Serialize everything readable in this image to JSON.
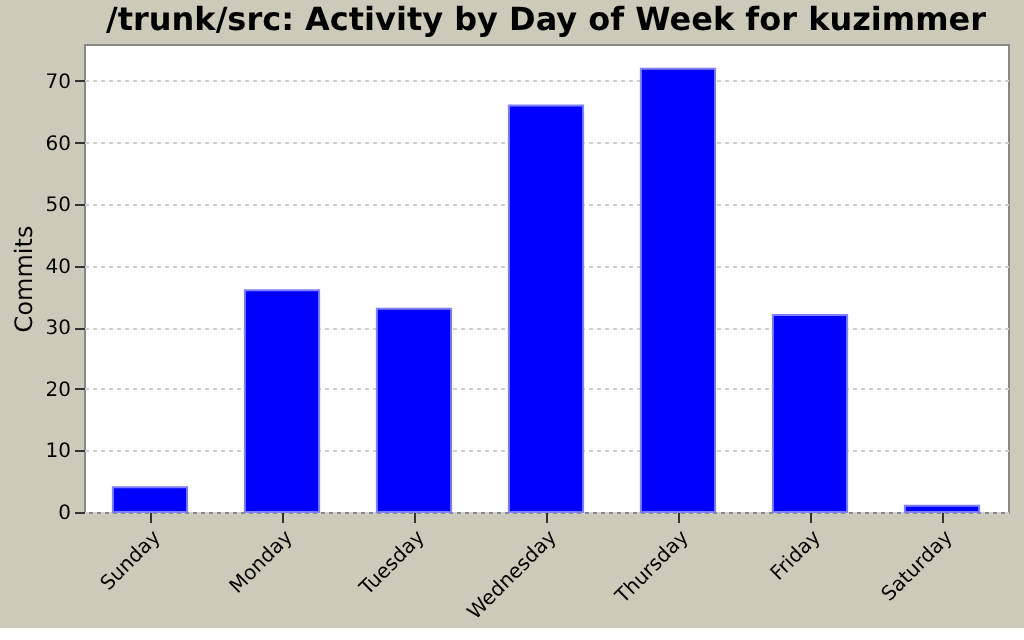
{
  "chart_data": {
    "type": "bar",
    "title": "/trunk/src: Activity by Day of Week for kuzimmer",
    "ylabel": "Commits",
    "categories": [
      "Sunday",
      "Monday",
      "Tuesday",
      "Wednesday",
      "Thursday",
      "Friday",
      "Saturday"
    ],
    "values": [
      4,
      36,
      33,
      66,
      72,
      32,
      1
    ],
    "color": "#0000ff",
    "ylim": [
      0,
      76
    ],
    "yticks": [
      0,
      10,
      20,
      30,
      40,
      50,
      60,
      70
    ],
    "grid": "y"
  }
}
